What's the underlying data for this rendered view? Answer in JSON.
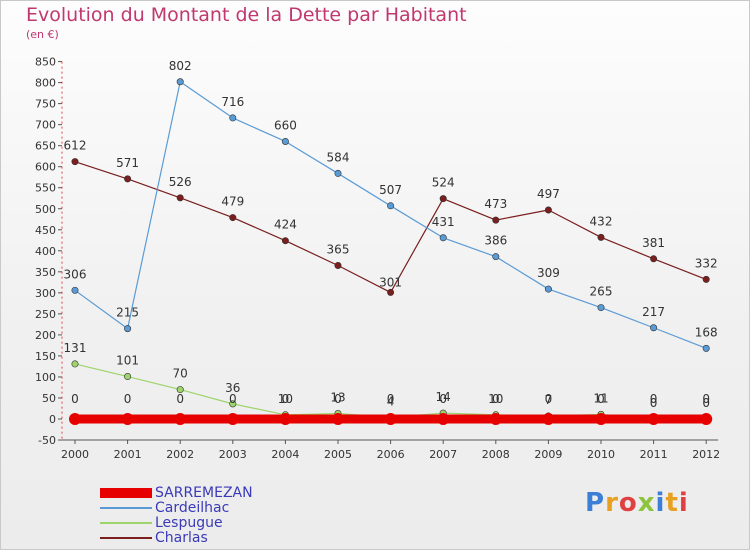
{
  "title": "Evolution du Montant de la Dette par Habitant",
  "subtitle": "(en €)",
  "logo": {
    "text": "Proxiti",
    "colors": [
      "#3b7fd6",
      "#e8a020",
      "#e04040",
      "#8cc43c",
      "#3b7fd6",
      "#e8a020",
      "#e04040"
    ]
  },
  "chart_data": {
    "type": "line",
    "title": "Evolution du Montant de la Dette par Habitant",
    "subtitle": "(en €)",
    "x": [
      "2000",
      "2001",
      "2002",
      "2003",
      "2004",
      "2005",
      "2006",
      "2007",
      "2008",
      "2009",
      "2010",
      "2011",
      "2012"
    ],
    "ylim": [
      -50,
      850
    ],
    "yticks": [
      -50,
      0,
      50,
      100,
      150,
      200,
      250,
      300,
      350,
      400,
      450,
      500,
      550,
      600,
      650,
      700,
      750,
      800,
      850
    ],
    "grid": false,
    "legend_position": "bottom-left",
    "series": [
      {
        "name": "SARREMEZAN",
        "color": "#e60000",
        "values": [
          0,
          0,
          0,
          0,
          0,
          0,
          0,
          0,
          0,
          0,
          0,
          0,
          0
        ],
        "labels": [
          "0",
          "0",
          "0",
          "0",
          "0",
          "0",
          "0",
          "0",
          "0",
          "0",
          "0",
          "0",
          "0"
        ],
        "label_dy": [
          -16,
          -16,
          -16,
          -16,
          -16,
          -16,
          -16,
          -16,
          -16,
          -16,
          -16,
          -16,
          -16
        ]
      },
      {
        "name": "Cardeilhac",
        "color": "#5b9bd5",
        "values": [
          306,
          215,
          802,
          716,
          660,
          584,
          507,
          431,
          386,
          309,
          265,
          217,
          168
        ],
        "labels": [
          "306",
          "215",
          "802",
          "716",
          "660",
          "584",
          "507",
          "431",
          "386",
          "309",
          "265",
          "217",
          "168"
        ],
        "label_dy": [
          -12,
          -12,
          -12,
          -12,
          -12,
          -12,
          -12,
          -12,
          -12,
          -12,
          -12,
          -12,
          -12
        ]
      },
      {
        "name": "Lespugue",
        "color": "#9ed46c",
        "values": [
          131,
          101,
          70,
          36,
          10,
          13,
          4,
          14,
          10,
          7,
          11,
          0,
          0
        ],
        "labels": [
          "131",
          "101",
          "70",
          "36",
          "10",
          "13",
          "4",
          "14",
          "10",
          "7",
          "11",
          "0",
          "0"
        ],
        "label_dy": [
          -12,
          -12,
          -12,
          -12,
          -12,
          -12,
          -12,
          -12,
          -12,
          -12,
          -12,
          -12,
          -12
        ]
      },
      {
        "name": "Charlas",
        "color": "#7a1e1e",
        "values": [
          612,
          571,
          526,
          479,
          424,
          365,
          301,
          524,
          473,
          497,
          432,
          381,
          332
        ],
        "labels": [
          "612",
          "571",
          "526",
          "479",
          "424",
          "365",
          "301",
          "524",
          "473",
          "497",
          "432",
          "381",
          "332"
        ],
        "label_dy": [
          -12,
          -12,
          -12,
          -12,
          -12,
          -12,
          -6,
          -12,
          -12,
          -12,
          -12,
          -12,
          -12
        ]
      }
    ]
  }
}
